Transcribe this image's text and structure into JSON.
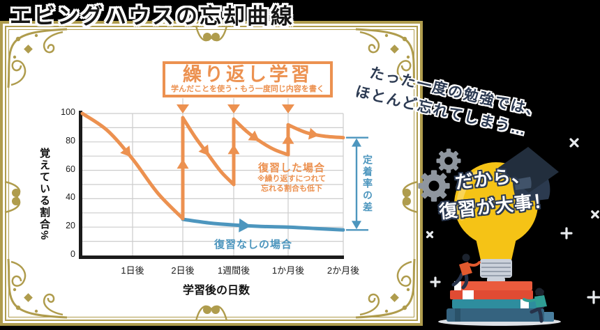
{
  "page_title": "エビングハウスの忘却曲線",
  "tagline": {
    "line1": "たった一度の勉強では、",
    "line2": "ほとんど忘れてしまう…"
  },
  "callout": {
    "line1": "だから、",
    "line2": "復習が大事！"
  },
  "colors": {
    "accent_orange": "#EC9150",
    "curve_blue": "#4D96BE",
    "frame_gold": "#AF9C4D",
    "outline_navy": "#2C3A52",
    "bulb_yellow": "#F5C316",
    "gear_gray": "#8F969F",
    "grid_gray": "#CCCCCC"
  },
  "chart_data": {
    "type": "line",
    "title": "繰り返し学習",
    "subtitle": "学んだことを使う・もう一度同じ内容を書く",
    "xlabel": "学習後の日数",
    "ylabel": "覚えている割合%",
    "x_ticks": [
      "1日後",
      "2日後",
      "1週間後",
      "1か月後",
      "2か月後"
    ],
    "y_ticks": [
      100,
      80,
      60,
      40,
      20,
      0
    ],
    "ylim": [
      0,
      100
    ],
    "grid": true,
    "x_unit": "tick index: 0 = 学習直後, 1-5 = x_ticks",
    "review_marks": {
      "at_ticks": [
        2,
        3,
        4
      ],
      "labels": [
        "2日後",
        "1週間後",
        "1か月後"
      ]
    },
    "series": [
      {
        "name": "復習した場合",
        "color": "#EC9150",
        "note": [
          "※繰り返すにつれて",
          "忘れる割合も低下"
        ],
        "decays": [
          [
            [
              0,
              100
            ],
            [
              0.5,
              88
            ],
            [
              1,
              68
            ],
            [
              1.5,
              44
            ],
            [
              2,
              26
            ]
          ],
          [
            [
              2,
              97
            ],
            [
              2.25,
              83
            ],
            [
              2.5,
              71
            ],
            [
              2.75,
              59
            ],
            [
              3,
              50
            ]
          ],
          [
            [
              3,
              96
            ],
            [
              3.25,
              87
            ],
            [
              3.5,
              80
            ],
            [
              3.75,
              74.5
            ],
            [
              4,
              71
            ]
          ],
          [
            [
              4,
              92
            ],
            [
              4.33,
              86.5
            ],
            [
              4.66,
              84
            ],
            [
              5,
              83
            ]
          ]
        ],
        "jumps": [
          {
            "tick": 2,
            "from": 26,
            "to": 97
          },
          {
            "tick": 3,
            "from": 50,
            "to": 96
          },
          {
            "tick": 4,
            "from": 71,
            "to": 92
          }
        ]
      },
      {
        "name": "復習なしの場合",
        "color": "#4D96BE",
        "points": [
          [
            2,
            25.5
          ],
          [
            2.5,
            23
          ],
          [
            3,
            21.5
          ],
          [
            3.5,
            20.5
          ],
          [
            4,
            20
          ],
          [
            4.5,
            19
          ],
          [
            5,
            18
          ]
        ]
      }
    ],
    "diff_annotation": {
      "label": "定着率の差",
      "top_pct": 83,
      "bottom_pct": 18,
      "color": "#4D96BE"
    }
  }
}
